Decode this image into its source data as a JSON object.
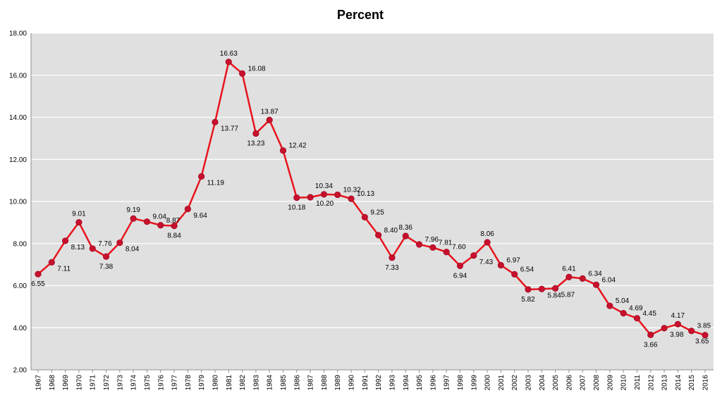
{
  "chart_data": {
    "type": "line",
    "title": "Percent",
    "xlabel": "",
    "ylabel": "",
    "ylim": [
      2.0,
      18.0
    ],
    "y_ticks": [
      "2.00",
      "4.00",
      "6.00",
      "8.00",
      "10.00",
      "12.00",
      "14.00",
      "16.00",
      "18.00"
    ],
    "grid": true,
    "colors": {
      "line": "#e8141c",
      "marker": "#c8102e",
      "plot_bg": "#e0e0e0",
      "grid": "#ffffff"
    },
    "categories": [
      "1967",
      "1968",
      "1969",
      "1970",
      "1971",
      "1972",
      "1973",
      "1974",
      "1975",
      "1976",
      "1977",
      "1978",
      "1979",
      "1980",
      "1981",
      "1982",
      "1983",
      "1984",
      "1985",
      "1986",
      "1987",
      "1988",
      "1989",
      "1990",
      "1991",
      "1992",
      "1993",
      "1994",
      "1995",
      "1996",
      "1997",
      "1998",
      "1999",
      "2000",
      "2001",
      "2002",
      "2003",
      "2004",
      "2005",
      "2006",
      "2007",
      "2008",
      "2009",
      "2010",
      "2011",
      "2012",
      "2013",
      "2014",
      "2015",
      "2016"
    ],
    "values": [
      6.55,
      7.11,
      8.13,
      9.01,
      7.76,
      7.38,
      8.04,
      9.19,
      9.04,
      8.87,
      8.84,
      9.64,
      11.19,
      13.77,
      16.63,
      16.08,
      13.23,
      13.87,
      12.42,
      10.18,
      10.2,
      10.34,
      10.32,
      10.13,
      9.25,
      8.4,
      7.33,
      8.36,
      7.96,
      7.81,
      7.6,
      6.94,
      7.43,
      8.06,
      6.97,
      6.54,
      5.82,
      5.84,
      5.87,
      6.41,
      6.34,
      6.04,
      5.04,
      4.69,
      4.45,
      3.66,
      3.98,
      4.17,
      3.85,
      3.65
    ],
    "value_labels": [
      "6.55",
      "7.11",
      "8.13",
      "9.01",
      "7.76",
      "7.38",
      "8.04",
      "9.19",
      "9.04",
      "8.87",
      "8.84",
      "9.64",
      "11.19",
      "13.77",
      "16.63",
      "16.08",
      "13.23",
      "13.87",
      "12.42",
      "10.18",
      "10.20",
      "10.34",
      "10.32",
      "10.13",
      "9.25",
      "8.40",
      "7.33",
      "8.36",
      "7.96",
      "7.81",
      "7.60",
      "6.94",
      "7.43",
      "8.06",
      "6.97",
      "6.54",
      "5.82",
      "5.84",
      "5.87",
      "6.41",
      "6.34",
      "6.04",
      "5.04",
      "4.69",
      "4.45",
      "3.66",
      "3.98",
      "4.17",
      "3.85",
      "3.65"
    ]
  }
}
